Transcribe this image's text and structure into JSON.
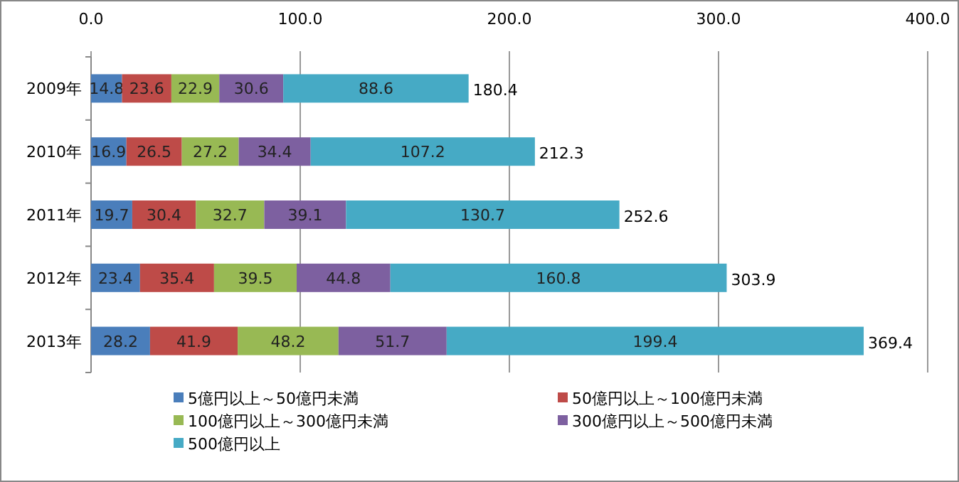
{
  "chart_data": {
    "type": "bar",
    "orientation": "horizontal",
    "stacked": true,
    "categories": [
      "2009年",
      "2010年",
      "2011年",
      "2012年",
      "2013年"
    ],
    "series": [
      {
        "name": "5億円以上～50億円未満",
        "color": "#4a7ebb",
        "values": [
          14.8,
          16.9,
          19.7,
          23.4,
          28.2
        ]
      },
      {
        "name": "50億円以上～100億円未満",
        "color": "#be4b48",
        "values": [
          23.6,
          26.5,
          30.4,
          35.4,
          41.9
        ]
      },
      {
        "name": "100億円以上～300億円未満",
        "color": "#98b954",
        "values": [
          22.9,
          27.2,
          32.7,
          39.5,
          48.2
        ]
      },
      {
        "name": "300億円以上～500億円未満",
        "color": "#7d60a0",
        "values": [
          30.6,
          34.4,
          39.1,
          44.8,
          51.7
        ]
      },
      {
        "name": "500億円以上",
        "color": "#46aac5",
        "values": [
          88.6,
          107.2,
          130.7,
          160.8,
          199.4
        ]
      }
    ],
    "xlim": [
      0,
      400
    ],
    "xticks": [
      {
        "value": 0,
        "label": "0.0"
      },
      {
        "value": 100,
        "label": "100.0"
      },
      {
        "value": 200,
        "label": "200.0"
      },
      {
        "value": 300,
        "label": "300.0"
      },
      {
        "value": 400,
        "label": "400.0"
      }
    ],
    "grid": "x",
    "legend": "bottom",
    "data_labels": true,
    "totals": [
      "180.4",
      "212.3",
      "252.6",
      "303.9",
      "369.4"
    ]
  }
}
